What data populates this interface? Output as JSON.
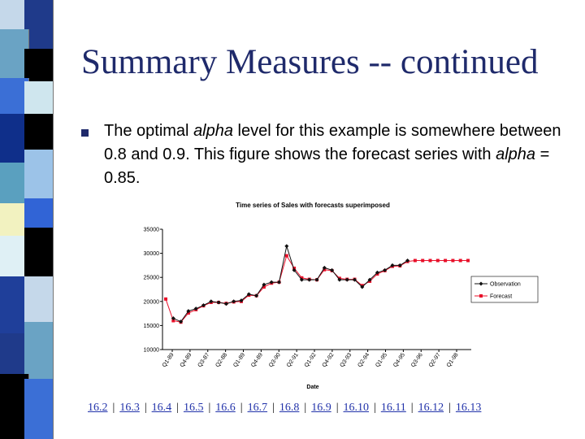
{
  "slide": {
    "title": "Summary Measures -- continued",
    "bullet": {
      "text_1": "The optimal ",
      "alpha_1": "alpha",
      "text_2": " level for this example is somewhere between 0.8 and 0.9. This figure shows the forecast series with ",
      "alpha_2": "alpha",
      "text_3": " = 0.85."
    }
  },
  "nav_links": [
    "16.2",
    "16.3",
    "16.4",
    "16.5",
    "16.6",
    "16.7",
    "16.8",
    "16.9",
    "16.10",
    "16.11",
    "16.12",
    "16.13"
  ],
  "colors": {
    "title": "#1f2a6b",
    "observation_series": "#111111",
    "forecast_series": "#e8102a",
    "sidebar": [
      "#c5d8ea",
      "#1f3a8a",
      "#6aa3c4",
      "#000000",
      "#3b6fd6",
      "#cfe6ee",
      "#0f2f8a",
      "#000000",
      "#5aa0bf",
      "#9cc3e8",
      "#f2f2c0",
      "#3164d6",
      "#dff0f5",
      "#000000",
      "#1f3f9a"
    ]
  },
  "chart_data": {
    "type": "line",
    "title": "Time series of Sales with forecasts superimposed",
    "xlabel": "Date",
    "ylabel": "",
    "ylim": [
      10000,
      35000
    ],
    "yticks": [
      "35000",
      "30000",
      "25000",
      "20000",
      "15000",
      "10000"
    ],
    "ytick_values": [
      35000,
      30000,
      25000,
      20000,
      15000,
      10000
    ],
    "xticks": [
      "Q1-89",
      "Q4-89",
      "Q3-87",
      "Q2-88",
      "Q1-89",
      "Q4-89",
      "Q3-90",
      "Q2-91",
      "Q1-92",
      "Q4-92",
      "Q3-93",
      "Q2-94",
      "Q1-95",
      "Q4-95",
      "Q3-96",
      "Q2-97",
      "Q1-98"
    ],
    "legend": [
      "Observation",
      "Forecast"
    ],
    "legend_position": "right",
    "grid": false,
    "series": [
      {
        "name": "Observation",
        "values": [
          16500,
          15800,
          18000,
          18500,
          19200,
          20000,
          19800,
          19500,
          20000,
          20200,
          21500,
          21200,
          23500,
          24000,
          24000,
          31500,
          26500,
          24500,
          24500,
          24500,
          27000,
          26500,
          24500,
          24500,
          24500,
          23000,
          24500,
          26000,
          26500,
          27500,
          27500,
          28500
        ]
      },
      {
        "name": "Forecast",
        "values": [
          20500,
          16000,
          15700,
          17600,
          18300,
          19100,
          19800,
          19800,
          19600,
          19900,
          20000,
          21300,
          21200,
          23000,
          23800,
          24000,
          29500,
          26900,
          24900,
          24600,
          24500,
          26600,
          26400,
          24800,
          24600,
          24600,
          23300,
          24200,
          25700,
          26400,
          27300,
          27400,
          28300,
          28500,
          28500,
          28500,
          28500,
          28500,
          28500,
          28500,
          28500
        ]
      }
    ]
  }
}
